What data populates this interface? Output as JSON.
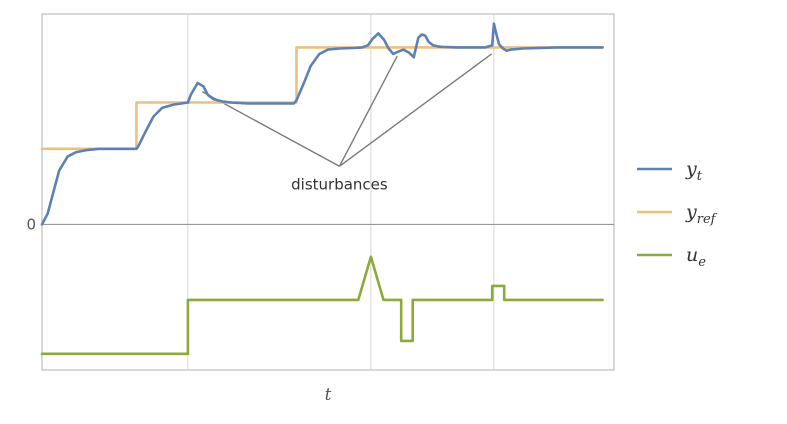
{
  "chart_data": {
    "type": "line",
    "xlabel": "t",
    "yticks": [
      {
        "label": "0",
        "value": 0
      }
    ],
    "xgrid": [
      0.255,
      0.575,
      0.79
    ],
    "xlim": [
      0,
      1
    ],
    "ylim": [
      -1.35,
      1.95
    ],
    "grid": "vertical",
    "legend": "right",
    "series": [
      {
        "name": "y",
        "name_sub": "t",
        "color": "#5E81B5",
        "role": "output",
        "x": [
          0.0,
          0.01,
          0.02,
          0.03,
          0.045,
          0.06,
          0.08,
          0.1,
          0.13,
          0.165,
          0.168,
          0.18,
          0.195,
          0.21,
          0.23,
          0.255,
          0.26,
          0.272,
          0.282,
          0.29,
          0.3,
          0.315,
          0.33,
          0.36,
          0.4,
          0.44,
          0.445,
          0.457,
          0.47,
          0.485,
          0.5,
          0.52,
          0.545,
          0.56,
          0.57,
          0.578,
          0.588,
          0.598,
          0.606,
          0.614,
          0.622,
          0.632,
          0.642,
          0.65,
          0.653,
          0.658,
          0.664,
          0.67,
          0.676,
          0.684,
          0.692,
          0.7,
          0.71,
          0.725,
          0.745,
          0.775,
          0.787,
          0.79,
          0.794,
          0.799,
          0.806,
          0.812,
          0.82,
          0.84,
          0.9,
          0.98
        ],
        "y": [
          0.0,
          0.1,
          0.3,
          0.5,
          0.63,
          0.67,
          0.69,
          0.7,
          0.7,
          0.7,
          0.72,
          0.85,
          1.0,
          1.08,
          1.11,
          1.13,
          1.2,
          1.31,
          1.28,
          1.2,
          1.16,
          1.14,
          1.13,
          1.12,
          1.12,
          1.12,
          1.15,
          1.3,
          1.47,
          1.58,
          1.62,
          1.63,
          1.635,
          1.64,
          1.66,
          1.72,
          1.77,
          1.71,
          1.63,
          1.58,
          1.6,
          1.62,
          1.59,
          1.55,
          1.62,
          1.73,
          1.76,
          1.75,
          1.69,
          1.66,
          1.65,
          1.645,
          1.643,
          1.64,
          1.64,
          1.64,
          1.66,
          1.86,
          1.77,
          1.67,
          1.63,
          1.61,
          1.62,
          1.63,
          1.64,
          1.64
        ]
      },
      {
        "name": "y",
        "name_sub": "ref",
        "color": "#EBC17E",
        "role": "reference",
        "x": [
          0.0,
          0.165,
          0.165,
          0.445,
          0.445,
          0.98
        ],
        "y": [
          0.7,
          0.7,
          1.13,
          1.13,
          1.64,
          1.64
        ]
      },
      {
        "name": "u",
        "name_sub": "e",
        "color": "#8AAB3B",
        "role": "input",
        "x": [
          0.0,
          0.255,
          0.255,
          0.553,
          0.575,
          0.597,
          0.628,
          0.628,
          0.648,
          0.648,
          0.787,
          0.787,
          0.808,
          0.808,
          0.98
        ],
        "y": [
          -1.2,
          -1.2,
          -0.7,
          -0.7,
          -0.3,
          -0.7,
          -0.7,
          -1.08,
          -1.08,
          -0.7,
          -0.7,
          -0.57,
          -0.57,
          -0.7,
          -0.7
        ]
      }
    ],
    "annotations": [
      {
        "text": "disturbances",
        "label_at": [
          0.52,
          0.52
        ],
        "pointers": [
          {
            "x": 0.28,
            "y": 1.23
          },
          {
            "x": 0.621,
            "y": 1.56
          },
          {
            "x": 0.786,
            "y": 1.58
          }
        ]
      }
    ]
  }
}
